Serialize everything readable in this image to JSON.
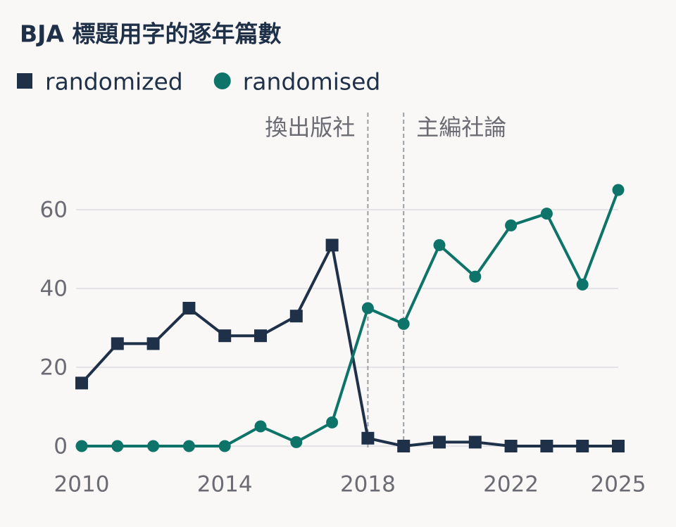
{
  "chart_data": {
    "type": "line",
    "title": "BJA 標題用字的逐年篇數",
    "x": [
      2010,
      2011,
      2012,
      2013,
      2014,
      2015,
      2016,
      2017,
      2018,
      2019,
      2020,
      2021,
      2022,
      2023,
      2024,
      2025
    ],
    "series": [
      {
        "name": "randomized",
        "color": "#1f3049",
        "marker": "square",
        "values": [
          16,
          26,
          26,
          35,
          28,
          28,
          33,
          51,
          2,
          0,
          1,
          1,
          0,
          0,
          0,
          0
        ]
      },
      {
        "name": "randomised",
        "color": "#0e7469",
        "marker": "circle",
        "values": [
          0,
          0,
          0,
          0,
          0,
          5,
          1,
          6,
          35,
          31,
          51,
          43,
          56,
          59,
          41,
          65
        ]
      }
    ],
    "xlim": [
      2010,
      2025
    ],
    "xticks": [
      2010,
      2014,
      2018,
      2022,
      2025
    ],
    "ylim": [
      0,
      70
    ],
    "yticks": [
      0,
      20,
      40,
      60
    ],
    "grid": true,
    "annotations": [
      {
        "text": "換出版社",
        "x": 2018
      },
      {
        "text": "主編社論",
        "x": 2019
      }
    ]
  }
}
